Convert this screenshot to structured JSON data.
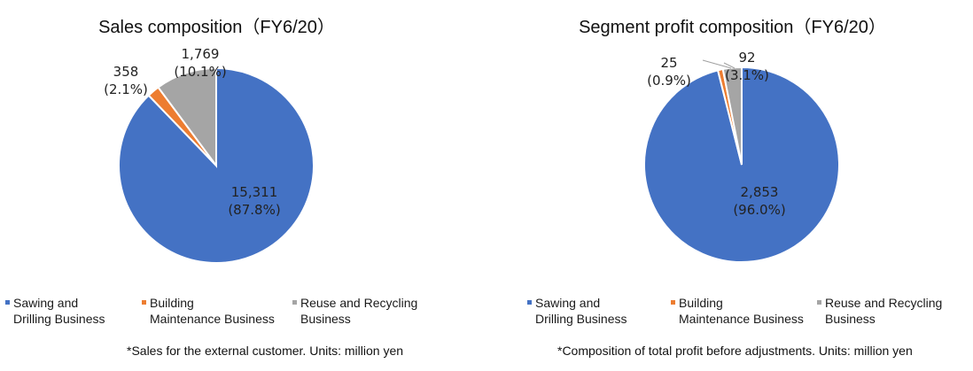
{
  "chart_data": [
    {
      "type": "pie",
      "title": "Sales composition（FY6/20）",
      "slices": [
        {
          "name": "Sawing and Drilling Business",
          "value": 15311,
          "value_label": "15,311",
          "percent_label": "(87.8%)",
          "color": "#4472C4"
        },
        {
          "name": "Building Maintenance Business",
          "value": 358,
          "value_label": "358",
          "percent_label": "(2.1%)",
          "color": "#ED7D31"
        },
        {
          "name": "Reuse and Recycling Business",
          "value": 1769,
          "value_label": "1,769",
          "percent_label": "(10.1%)",
          "color": "#A5A5A5"
        }
      ],
      "legend": {
        "placement": "bottom",
        "items": [
          "Sawing and\nDrilling Business",
          "Building\nMaintenance Business",
          "Reuse and Recycling\nBusiness"
        ]
      },
      "note": "*Sales for the external customer. Units: million yen"
    },
    {
      "type": "pie",
      "title": "Segment profit composition（FY6/20）",
      "slices": [
        {
          "name": "Sawing and Drilling Business",
          "value": 2853,
          "value_label": "2,853",
          "percent_label": "(96.0%)",
          "color": "#4472C4"
        },
        {
          "name": "Building Maintenance Business",
          "value": 25,
          "value_label": "25",
          "percent_label": "(0.9%)",
          "color": "#ED7D31"
        },
        {
          "name": "Reuse and Recycling Business",
          "value": 92,
          "value_label": "92",
          "percent_label": "(3.1%)",
          "color": "#A5A5A5"
        }
      ],
      "legend": {
        "placement": "bottom",
        "items": [
          "Sawing and\nDrilling Business",
          "Building\nMaintenance Business",
          "Reuse and Recycling\nBusiness"
        ]
      },
      "note": "*Composition of total profit before adjustments. Units: million yen"
    }
  ]
}
